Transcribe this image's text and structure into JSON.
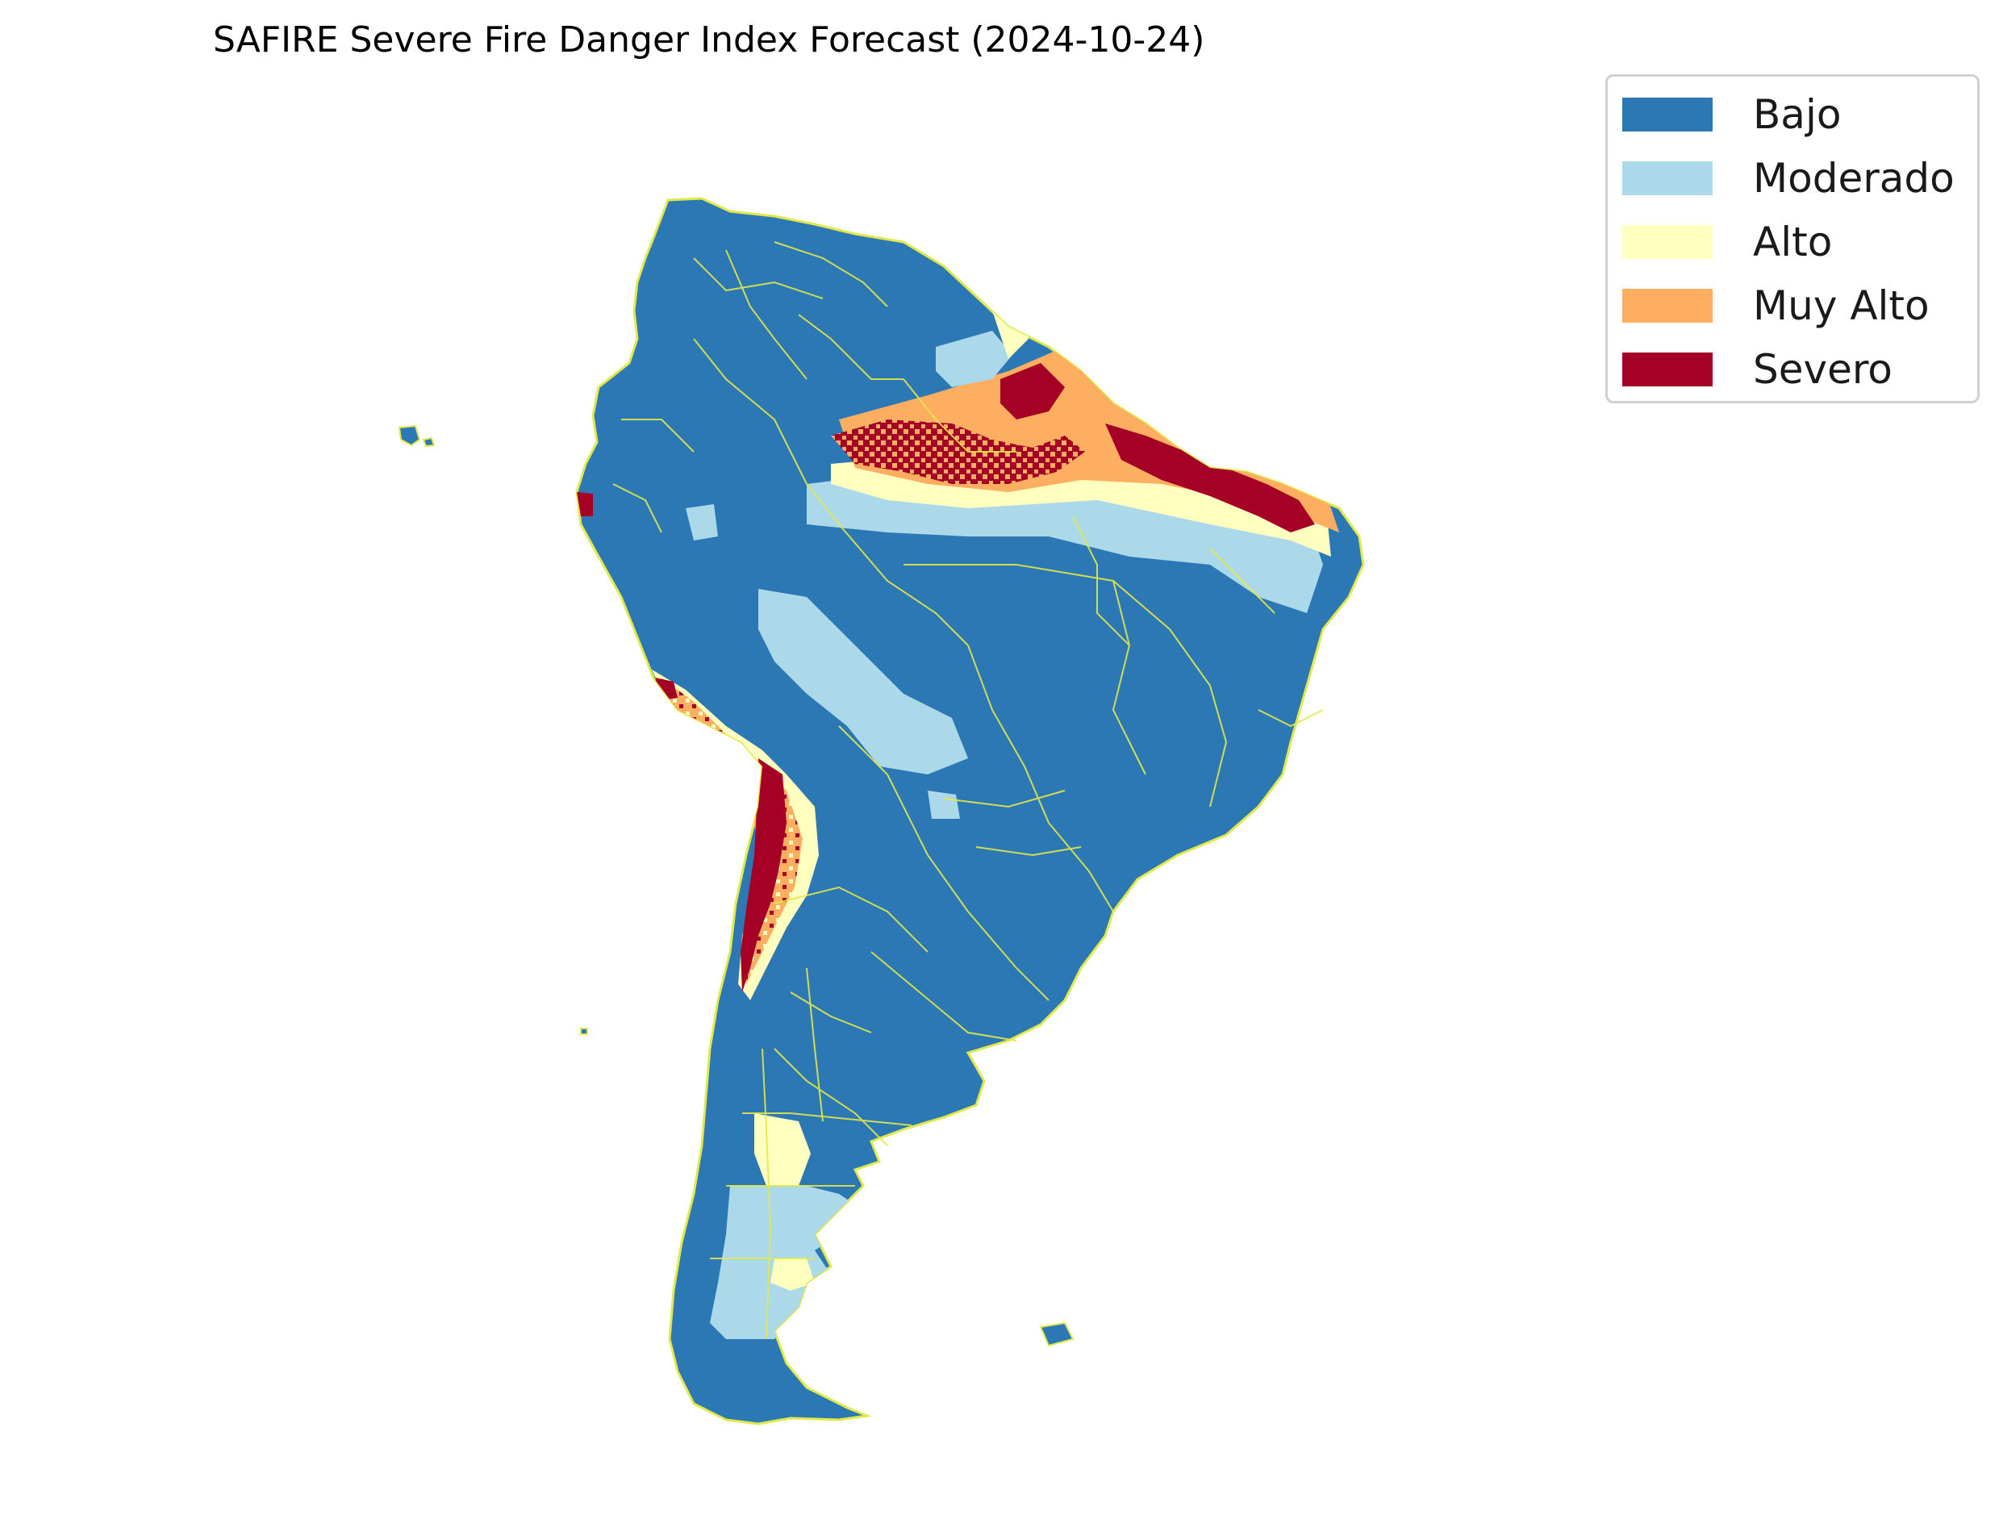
{
  "title": "SAFIRE Severe Fire Danger Index Forecast (2024-10-24)",
  "legend": {
    "items": [
      {
        "label": "Bajo",
        "color": "#2c78b4"
      },
      {
        "label": "Moderado",
        "color": "#abd9e9"
      },
      {
        "label": "Alto",
        "color": "#ffffbf"
      },
      {
        "label": "Muy Alto",
        "color": "#fdae61"
      },
      {
        "label": "Severo",
        "color": "#a50026"
      }
    ]
  },
  "map": {
    "region": "South America",
    "boundary_color": "#e2e84a",
    "base_class": "Bajo"
  }
}
